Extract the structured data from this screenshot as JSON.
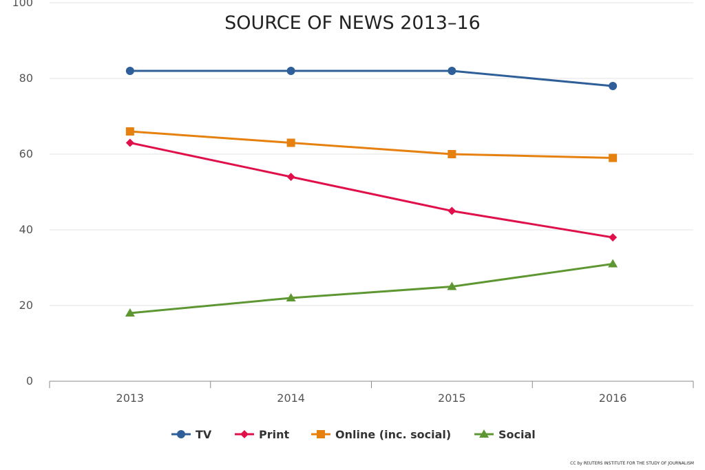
{
  "chart_data": {
    "type": "line",
    "title": "SOURCE OF NEWS 2013–16",
    "categories": [
      "2013",
      "2014",
      "2015",
      "2016"
    ],
    "xlabel": "",
    "ylabel": "",
    "ylim": [
      0,
      100
    ],
    "yticks": [
      0,
      20,
      40,
      60,
      80,
      100
    ],
    "grid": true,
    "legend": "bottom",
    "series": [
      {
        "name": "TV",
        "marker": "circle",
        "color": "#2f5f98",
        "values": [
          82,
          82,
          82,
          78
        ]
      },
      {
        "name": "Print",
        "marker": "diamond",
        "color": "#e0104a",
        "values": [
          63,
          54,
          45,
          38
        ]
      },
      {
        "name": "Online (inc. social)",
        "marker": "square",
        "color": "#e6800f",
        "values": [
          66,
          63,
          60,
          59
        ]
      },
      {
        "name": "Social",
        "marker": "triangle",
        "color": "#5e9732",
        "values": [
          18,
          22,
          25,
          31
        ]
      }
    ]
  },
  "credit": "CC by REUTERS INSTITUTE FOR THE STUDY OF JOURNALISM"
}
